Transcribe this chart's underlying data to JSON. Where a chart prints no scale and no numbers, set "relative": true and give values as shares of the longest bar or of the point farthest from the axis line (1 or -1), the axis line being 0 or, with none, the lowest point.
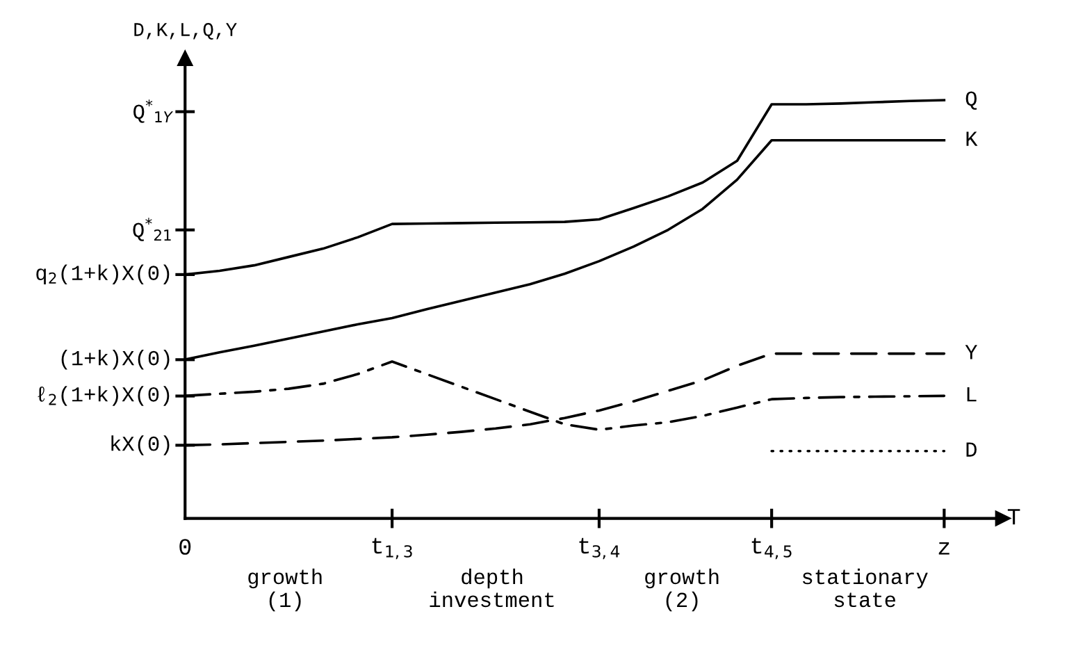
{
  "chart_data": {
    "type": "line",
    "relative": true,
    "ylabel": "D,K,L,Q,Y",
    "xlabel": "T",
    "categories": [
      "0",
      null,
      null,
      null,
      null,
      null,
      "t$_{1,3}$",
      null,
      null,
      null,
      null,
      null,
      "t$_{3,4}$",
      null,
      null,
      null,
      null,
      "t$_{4,5}$",
      null,
      null,
      null,
      null,
      "z"
    ],
    "legend": false,
    "grid": false,
    "marker": "none",
    "series": [
      {
        "name": "Q",
        "color": "#000000",
        "line_style": "solid",
        "values": [
          0.583,
          0.592,
          0.605,
          0.625,
          0.645,
          0.672,
          0.704,
          0.705,
          0.706,
          0.707,
          0.708,
          0.709,
          0.715,
          0.742,
          0.77,
          0.803,
          0.855,
          0.99,
          0.99,
          0.992,
          0.995,
          0.998,
          1
        ]
      },
      {
        "name": "K",
        "color": "#000000",
        "line_style": "solid",
        "values": [
          0.38,
          0.397,
          0.413,
          0.43,
          0.447,
          0.464,
          0.479,
          0.5,
          0.52,
          0.54,
          0.56,
          0.585,
          0.615,
          0.65,
          0.69,
          0.74,
          0.81,
          0.904,
          0.904,
          0.904,
          0.904,
          0.904,
          0.904
        ]
      },
      {
        "name": "Y",
        "color": "#000000",
        "line_style": "dashed",
        "values": [
          0.175,
          0.177,
          0.18,
          0.183,
          0.186,
          0.19,
          0.194,
          0.2,
          0.207,
          0.215,
          0.225,
          0.24,
          0.258,
          0.28,
          0.305,
          0.33,
          0.365,
          0.394,
          0.394,
          0.394,
          0.394,
          0.394,
          0.394
        ]
      },
      {
        "name": "L",
        "color": "#000000",
        "line_style": "dashdot",
        "values": [
          0.293,
          0.298,
          0.303,
          0.31,
          0.322,
          0.345,
          0.375,
          0.345,
          0.315,
          0.285,
          0.255,
          0.225,
          0.212,
          0.222,
          0.23,
          0.245,
          0.265,
          0.285,
          0.288,
          0.29,
          0.291,
          0.292,
          0.293
        ]
      },
      {
        "name": "D",
        "color": "#000000",
        "line_style": "dotted",
        "values": [
          null,
          null,
          null,
          null,
          null,
          null,
          null,
          null,
          null,
          null,
          null,
          null,
          null,
          null,
          null,
          null,
          null,
          0.161,
          0.161,
          0.161,
          0.161,
          0.161,
          0.161
        ]
      }
    ],
    "annotations": [
      "Q$^{*}$$_{1Y}$",
      "Q$^{*}$$_{21}$",
      "q$_{2}$(1+k)X(0)",
      "(1+k)X(0)",
      "ℓ$_{2}$(1+k)X(0)",
      "kX(0)",
      "growth\n(1)",
      "depth\ninvestment",
      "growth\n(2)",
      "stationary\nstate"
    ]
  }
}
